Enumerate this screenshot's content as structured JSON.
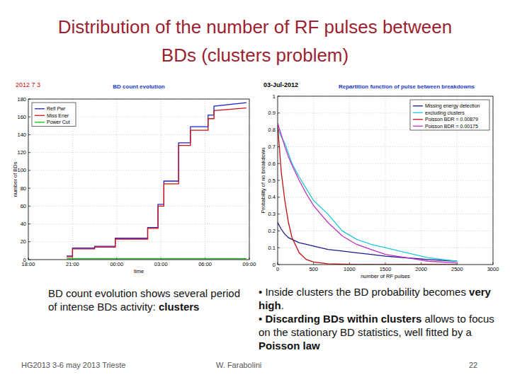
{
  "slide": {
    "title": "Distribution of the number of RF pulses between BDs (clusters problem)",
    "left_text": [
      {
        "text": "BD count evolution shows several period of intense BDs activity: ",
        "bold": false
      },
      {
        "text": "clusters",
        "bold": true
      }
    ],
    "bullets": [
      [
        {
          "text": "• Inside clusters the BD probability becomes ",
          "bold": false
        },
        {
          "text": "very high",
          "bold": true
        },
        {
          "text": ".",
          "bold": false
        }
      ],
      [
        {
          "text": "• ",
          "bold": false
        },
        {
          "text": "Discarding BDs within clusters",
          "bold": true
        },
        {
          "text": " allows to focus on the stationary BD statistics, well fitted by a ",
          "bold": false
        },
        {
          "text": "Poisson law",
          "bold": true
        }
      ]
    ],
    "footer": {
      "left": "HG2013 3-6 may 2013 Trieste",
      "center": "W. Farabolini",
      "page": "22"
    }
  },
  "chart_data": [
    {
      "type": "line",
      "subtitle": "2012 7 3",
      "title": "BD count evolution",
      "x_label": "time",
      "y_label": "number of BDs",
      "x": [
        20.6,
        21,
        21,
        22.5,
        22.5,
        23.9,
        23.9,
        26.1,
        26.1,
        26.8,
        26.8,
        27.2,
        27.2,
        28.2,
        28.2,
        29,
        29,
        30.2,
        30.2,
        30.6,
        30.6,
        32.8
      ],
      "xlim": [
        18,
        33
      ],
      "xticks": [
        {
          "value": 18,
          "label": "18:00"
        },
        {
          "value": 21,
          "label": "21:00"
        },
        {
          "value": 24,
          "label": "00:00"
        },
        {
          "value": 27,
          "label": "03:00"
        },
        {
          "value": 30,
          "label": "06:00"
        },
        {
          "value": 33,
          "label": "09:00"
        }
      ],
      "ylim": [
        0,
        180
      ],
      "yticks": [
        0,
        20,
        40,
        60,
        80,
        100,
        120,
        140,
        160,
        180
      ],
      "grid": true,
      "legend": "top-left",
      "series": [
        {
          "name": "Refl Pwr",
          "color": "#2020d0",
          "values": [
            4,
            4,
            13,
            13,
            15,
            15,
            24,
            24,
            36,
            36,
            62,
            62,
            88,
            88,
            131,
            131,
            149,
            149,
            162,
            162,
            172,
            176
          ]
        },
        {
          "name": "Miss Ener",
          "color": "#d01010",
          "values": [
            3,
            3,
            12,
            12,
            14,
            14,
            23,
            23,
            35,
            35,
            60,
            60,
            85,
            85,
            128,
            128,
            145,
            145,
            158,
            158,
            167,
            170
          ]
        },
        {
          "name": "Power Cut",
          "color": "#10c010",
          "values": [
            1,
            1,
            1,
            1,
            1,
            1,
            1,
            1,
            1,
            1,
            1,
            1,
            1,
            1,
            1,
            1,
            1,
            1,
            1,
            1,
            1,
            1
          ]
        }
      ]
    },
    {
      "type": "line",
      "subtitle": "03-Jul-2012",
      "title": "Repartition function of pulse between breakdowns",
      "x_label": "number of RF pulses",
      "y_label": "Probability of no breakdown",
      "x": [
        0,
        50,
        100,
        150,
        200,
        300,
        400,
        500,
        700,
        900,
        1100,
        1300,
        1500,
        1800,
        2100,
        2500
      ],
      "xlim": [
        0,
        3000
      ],
      "xticks": [
        0,
        500,
        1000,
        1500,
        2000,
        2500,
        3000
      ],
      "ylim": [
        0,
        1
      ],
      "yticks": [
        0,
        0.1,
        0.2,
        0.3,
        0.4,
        0.5,
        0.6,
        0.7,
        0.8,
        0.9,
        1
      ],
      "grid": true,
      "legend": "top-right",
      "series": [
        {
          "name": "Missing energy detection",
          "color": "#1a1a8c",
          "values": [
            0.25,
            0.21,
            0.18,
            0.16,
            0.15,
            0.13,
            0.12,
            0.11,
            0.09,
            0.08,
            0.07,
            0.06,
            0.05,
            0.04,
            0.03,
            0.02
          ]
        },
        {
          "name": "excluding clusters",
          "color": "#20c8d8",
          "values": [
            0.81,
            0.76,
            0.72,
            0.66,
            0.6,
            0.52,
            0.45,
            0.38,
            0.3,
            0.2,
            0.15,
            0.12,
            0.1,
            0.07,
            0.04,
            0.02
          ]
        },
        {
          "name": "Poisson BDR = 0.00879",
          "color": "#c01010",
          "values": [
            0.83,
            0.55,
            0.38,
            0.25,
            0.16,
            0.07,
            0.03,
            0.015,
            0.005,
            0.002,
            0,
            0,
            0,
            0,
            0,
            0
          ]
        },
        {
          "name": "Poisson BDR = 0.00175",
          "color": "#c030c0",
          "values": [
            0.84,
            0.77,
            0.7,
            0.64,
            0.59,
            0.5,
            0.42,
            0.35,
            0.25,
            0.17,
            0.12,
            0.09,
            0.06,
            0.04,
            0.02,
            0.01
          ]
        }
      ]
    }
  ]
}
